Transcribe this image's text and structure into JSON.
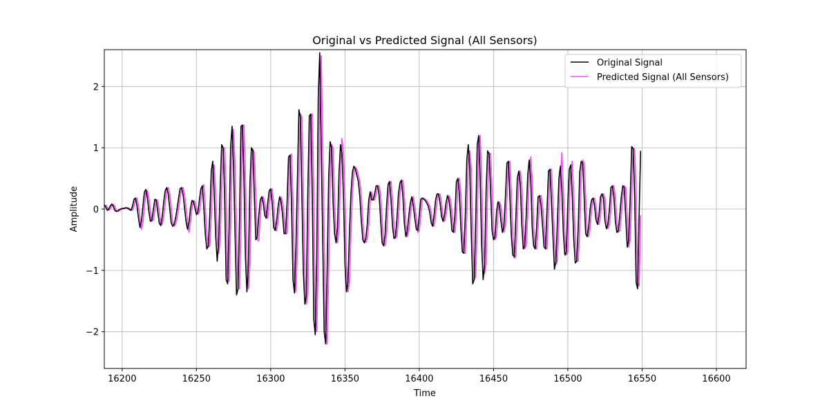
{
  "chart_data": {
    "type": "line",
    "title": "Original vs Predicted Signal (All Sensors)",
    "xlabel": "Time",
    "ylabel": "Amplitude",
    "xlim": [
      16188,
      16620
    ],
    "ylim": [
      -2.6,
      2.6
    ],
    "grid": true,
    "legend_position": "top-right",
    "x_ticks": [
      16200,
      16250,
      16300,
      16350,
      16400,
      16450,
      16500,
      16550,
      16600
    ],
    "y_ticks": [
      -2,
      -1,
      0,
      1,
      2
    ],
    "x_tick_labels": [
      "16200",
      "16250",
      "16300",
      "16350",
      "16400",
      "16450",
      "16500",
      "16550",
      "16600"
    ],
    "y_tick_labels": [
      "−2",
      "−1",
      "0",
      "1",
      "2"
    ],
    "x_step": 1,
    "series": [
      {
        "name": "Original Signal",
        "color": "#000000",
        "x_start": 16188,
        "values": [
          0.07,
          0.03,
          -0.02,
          0.0,
          0.05,
          0.08,
          0.05,
          -0.02,
          -0.04,
          -0.03,
          -0.01,
          0.0,
          0.01,
          0.01,
          0.02,
          0.02,
          0.01,
          -0.01,
          -0.02,
          0.05,
          0.16,
          0.18,
          0.05,
          -0.15,
          -0.3,
          -0.2,
          0.05,
          0.28,
          0.32,
          0.18,
          -0.04,
          -0.2,
          -0.18,
          -0.01,
          0.16,
          0.14,
          -0.05,
          -0.23,
          -0.27,
          -0.12,
          0.12,
          0.3,
          0.35,
          0.25,
          0.02,
          -0.22,
          -0.28,
          -0.25,
          -0.14,
          0.01,
          0.18,
          0.33,
          0.35,
          0.24,
          0.02,
          -0.2,
          -0.33,
          -0.22,
          0.01,
          0.14,
          0.12,
          0.02,
          -0.09,
          -0.05,
          0.15,
          0.33,
          0.38,
          0.02,
          -0.42,
          -0.65,
          -0.6,
          -0.1,
          0.62,
          0.78,
          0.22,
          -0.45,
          -0.85,
          -0.5,
          0.35,
          1.05,
          1.0,
          0.2,
          -1.15,
          -1.22,
          -0.3,
          1.0,
          1.35,
          0.7,
          -0.4,
          -1.4,
          -1.3,
          -0.2,
          1.35,
          1.37,
          0.5,
          -0.8,
          -1.35,
          -0.9,
          0.4,
          1.0,
          0.95,
          0.2,
          -0.5,
          -0.45,
          -0.1,
          0.15,
          0.2,
          0.1,
          -0.1,
          -0.15,
          0.1,
          0.3,
          0.33,
          0.1,
          -0.3,
          -0.35,
          -0.2,
          0.05,
          0.2,
          0.12,
          -0.1,
          -0.4,
          -0.4,
          0.1,
          0.85,
          0.88,
          0.1,
          -1.15,
          -1.37,
          -0.6,
          0.5,
          1.62,
          1.5,
          0.2,
          -1.05,
          -1.55,
          -1.4,
          0.3,
          1.52,
          1.55,
          0.2,
          -1.8,
          -2.05,
          -0.8,
          1.8,
          2.55,
          1.0,
          -0.5,
          -2.0,
          -2.2,
          -1.0,
          0.5,
          1.1,
          1.0,
          0.1,
          -0.4,
          -0.55,
          -0.3,
          0.6,
          1.05,
          0.9,
          0.2,
          -0.9,
          -1.35,
          -1.2,
          -0.4,
          0.25,
          0.6,
          0.7,
          0.65,
          0.55,
          0.45,
          0.2,
          -0.2,
          -0.5,
          -0.55,
          -0.48,
          -0.25,
          0.15,
          0.28,
          0.15,
          0.15,
          0.25,
          0.38,
          0.38,
          0.22,
          -0.18,
          -0.55,
          -0.6,
          -0.42,
          0.05,
          0.4,
          0.45,
          0.15,
          -0.28,
          -0.48,
          -0.45,
          -0.15,
          0.25,
          0.43,
          0.47,
          0.2,
          -0.25,
          -0.45,
          -0.35,
          -0.1,
          0.1,
          0.2,
          0.05,
          -0.15,
          -0.33,
          -0.35,
          -0.1,
          0.16,
          0.18,
          0.16,
          0.14,
          0.1,
          0.05,
          -0.05,
          -0.22,
          -0.28,
          -0.1,
          0.15,
          0.25,
          0.24,
          0.1,
          -0.12,
          -0.2,
          -0.1,
          0.1,
          0.22,
          0.15,
          -0.05,
          -0.35,
          -0.38,
          -0.1,
          0.45,
          0.5,
          0.25,
          -0.3,
          -0.7,
          -0.72,
          -0.1,
          0.8,
          1.05,
          0.65,
          -0.4,
          -1.22,
          -1.15,
          -0.2,
          1.05,
          1.2,
          0.5,
          -0.6,
          -1.15,
          -0.9,
          0.3,
          0.95,
          0.9,
          0.3,
          -0.35,
          -0.5,
          -0.45,
          -0.05,
          0.12,
          0.05,
          -0.2,
          -0.38,
          -0.28,
          0.2,
          0.75,
          0.78,
          0.2,
          -0.45,
          -0.75,
          -0.78,
          -0.15,
          0.5,
          0.62,
          0.4,
          -0.25,
          -0.65,
          -0.6,
          -0.1,
          0.55,
          0.8,
          0.5,
          -0.3,
          -0.6,
          -0.65,
          -0.3,
          0.2,
          0.22,
          0.05,
          -0.28,
          -0.62,
          -0.65,
          0.0,
          0.62,
          0.65,
          0.1,
          -0.45,
          -0.98,
          -0.85,
          -0.2,
          0.5,
          0.7,
          0.3,
          -0.4,
          -0.75,
          -0.7,
          0.1,
          0.65,
          0.72,
          0.2,
          -0.5,
          -0.88,
          -0.85,
          -0.3,
          0.6,
          0.78,
          0.75,
          0.2,
          -0.4,
          -0.45,
          -0.3,
          0.0,
          0.15,
          0.18,
          0.05,
          -0.18,
          -0.25,
          -0.1,
          0.2,
          0.25,
          0.18,
          -0.2,
          -0.32,
          -0.25,
          0.0,
          0.35,
          0.38,
          0.2,
          -0.2,
          -0.38,
          -0.35,
          -0.1,
          0.2,
          0.38,
          0.35,
          -0.15,
          -0.62,
          -0.5,
          0.2,
          1.02,
          0.98,
          0.2,
          -1.2,
          -1.3,
          -0.1,
          0.95
        ]
      },
      {
        "name": "Predicted Signal (All Sensors)",
        "color": "#ee55ee",
        "x_start": 16189,
        "values": [
          0.07,
          0.03,
          -0.02,
          0.0,
          0.05,
          0.08,
          0.05,
          -0.02,
          -0.04,
          -0.03,
          -0.01,
          0.0,
          0.01,
          0.01,
          0.02,
          0.02,
          0.01,
          -0.01,
          -0.02,
          0.05,
          0.16,
          0.18,
          0.05,
          -0.15,
          -0.33,
          -0.22,
          0.05,
          0.28,
          0.3,
          0.18,
          -0.04,
          -0.2,
          -0.18,
          -0.01,
          0.16,
          0.14,
          -0.05,
          -0.23,
          -0.25,
          -0.12,
          0.12,
          0.3,
          0.35,
          0.25,
          0.02,
          -0.22,
          -0.28,
          -0.25,
          -0.14,
          0.01,
          0.18,
          0.33,
          0.35,
          0.24,
          0.02,
          -0.2,
          -0.38,
          -0.22,
          0.01,
          0.14,
          0.12,
          0.02,
          -0.09,
          -0.05,
          0.15,
          0.33,
          0.4,
          0.02,
          -0.42,
          -0.62,
          -0.6,
          -0.1,
          0.62,
          0.72,
          0.22,
          -0.45,
          -0.72,
          -0.5,
          0.35,
          0.98,
          1.0,
          0.2,
          -1.1,
          -1.18,
          -0.3,
          1.0,
          1.3,
          0.7,
          -0.4,
          -1.3,
          -1.3,
          -0.2,
          1.35,
          1.37,
          0.5,
          -0.8,
          -1.3,
          -0.9,
          0.4,
          0.98,
          0.92,
          0.2,
          -0.5,
          -0.52,
          -0.1,
          0.15,
          0.2,
          0.1,
          -0.1,
          -0.15,
          0.1,
          0.3,
          0.33,
          0.1,
          -0.3,
          -0.35,
          -0.2,
          0.05,
          0.2,
          0.12,
          -0.1,
          -0.4,
          -0.4,
          0.1,
          0.85,
          0.9,
          0.1,
          -1.15,
          -1.35,
          -0.6,
          0.5,
          1.55,
          1.5,
          0.2,
          -1.05,
          -1.55,
          -1.4,
          0.3,
          1.52,
          1.55,
          0.2,
          -1.8,
          -2.0,
          -0.8,
          1.8,
          2.5,
          1.0,
          -0.5,
          -2.0,
          -2.2,
          -1.0,
          0.5,
          1.05,
          1.0,
          0.1,
          -0.4,
          -0.55,
          -0.3,
          0.6,
          1.15,
          0.9,
          0.2,
          -0.9,
          -1.35,
          -1.2,
          -0.4,
          0.25,
          0.6,
          0.68,
          0.65,
          0.55,
          0.45,
          0.2,
          -0.2,
          -0.5,
          -0.55,
          -0.48,
          -0.25,
          0.15,
          0.28,
          0.15,
          0.15,
          0.25,
          0.38,
          0.38,
          0.22,
          -0.18,
          -0.55,
          -0.6,
          -0.42,
          0.05,
          0.4,
          0.45,
          0.15,
          -0.28,
          -0.48,
          -0.45,
          -0.15,
          0.25,
          0.43,
          0.47,
          0.2,
          -0.25,
          -0.45,
          -0.35,
          -0.1,
          0.1,
          0.2,
          0.05,
          -0.15,
          -0.38,
          -0.35,
          -0.1,
          0.16,
          0.18,
          0.16,
          0.14,
          0.1,
          0.05,
          -0.05,
          -0.22,
          -0.28,
          -0.1,
          0.15,
          0.25,
          0.24,
          0.1,
          -0.12,
          -0.2,
          -0.1,
          0.1,
          0.22,
          0.15,
          -0.05,
          -0.35,
          -0.38,
          -0.1,
          0.45,
          0.5,
          0.25,
          -0.3,
          -0.72,
          -0.72,
          -0.1,
          0.8,
          0.95,
          0.65,
          -0.4,
          -1.15,
          -1.1,
          -0.2,
          1.05,
          1.2,
          0.5,
          -0.6,
          -1.05,
          -0.9,
          0.3,
          0.92,
          0.9,
          0.3,
          -0.35,
          -0.5,
          -0.45,
          -0.05,
          0.12,
          0.05,
          -0.2,
          -0.38,
          -0.28,
          0.2,
          0.72,
          0.78,
          0.2,
          -0.45,
          -0.8,
          -0.78,
          -0.15,
          0.5,
          0.62,
          0.4,
          -0.25,
          -0.65,
          -0.6,
          -0.1,
          0.55,
          0.85,
          0.5,
          -0.3,
          -0.6,
          -0.65,
          -0.3,
          0.2,
          0.22,
          0.05,
          -0.28,
          -0.62,
          -0.65,
          0.0,
          0.62,
          0.65,
          0.1,
          -0.45,
          -0.9,
          -0.85,
          -0.2,
          0.5,
          0.92,
          0.3,
          -0.4,
          -0.75,
          -0.7,
          0.1,
          0.65,
          0.78,
          0.2,
          -0.5,
          -0.85,
          -0.85,
          -0.3,
          0.6,
          0.8,
          0.75,
          0.2,
          -0.4,
          -0.45,
          -0.3,
          0.0,
          0.15,
          0.18,
          0.05,
          -0.18,
          -0.25,
          -0.1,
          0.2,
          0.25,
          0.18,
          -0.2,
          -0.32,
          -0.25,
          0.0,
          0.35,
          0.38,
          0.2,
          -0.2,
          -0.38,
          -0.35,
          -0.1,
          0.2,
          0.38,
          0.35,
          -0.15,
          -0.62,
          -0.5,
          0.2,
          1.0,
          0.98,
          0.2,
          -1.2,
          -1.25,
          -0.1
        ]
      }
    ]
  }
}
